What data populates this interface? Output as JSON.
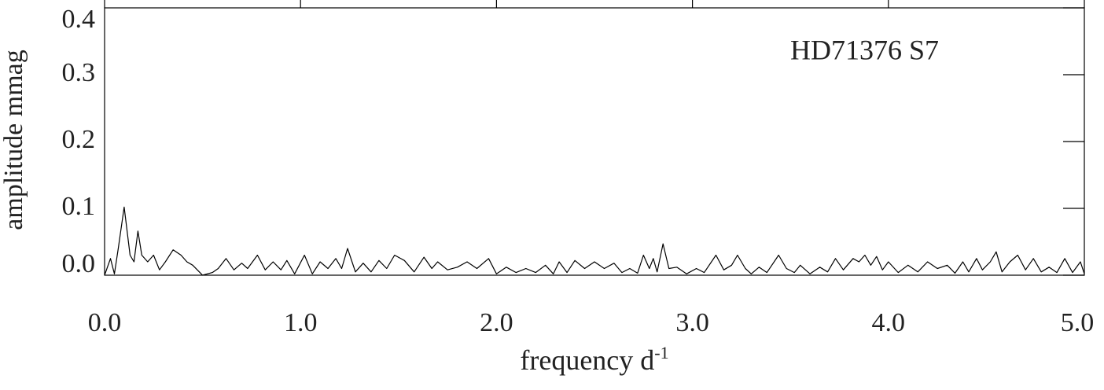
{
  "chart_data": {
    "type": "line",
    "annotation": "HD71376 S7",
    "xlabel": {
      "text": "frequency d",
      "superscript": "-1"
    },
    "ylabel": "amplitude mmag",
    "xlim": [
      0,
      5
    ],
    "ylim": [
      0,
      0.4
    ],
    "xticks": [
      {
        "value": 0,
        "label": "0.0"
      },
      {
        "value": 1,
        "label": "1.0"
      },
      {
        "value": 2,
        "label": "2.0"
      },
      {
        "value": 3,
        "label": "3.0"
      },
      {
        "value": 4,
        "label": "4.0"
      },
      {
        "value": 5,
        "label": "5.0"
      }
    ],
    "yticks": [
      {
        "value": 0,
        "label": "0.0"
      },
      {
        "value": 0.1,
        "label": "0.1"
      },
      {
        "value": 0.2,
        "label": "0.2"
      },
      {
        "value": 0.3,
        "label": "0.3"
      },
      {
        "value": 0.4,
        "label": "0.4"
      }
    ],
    "series": [
      {
        "color": "#000000",
        "x": [
          0.0,
          0.03,
          0.05,
          0.07,
          0.1,
          0.13,
          0.15,
          0.17,
          0.19,
          0.22,
          0.25,
          0.28,
          0.31,
          0.35,
          0.39,
          0.42,
          0.45,
          0.5,
          0.55,
          0.58,
          0.62,
          0.66,
          0.7,
          0.73,
          0.78,
          0.82,
          0.86,
          0.9,
          0.93,
          0.97,
          1.02,
          1.06,
          1.1,
          1.14,
          1.18,
          1.21,
          1.24,
          1.28,
          1.32,
          1.36,
          1.4,
          1.44,
          1.48,
          1.53,
          1.58,
          1.63,
          1.67,
          1.7,
          1.75,
          1.8,
          1.85,
          1.9,
          1.96,
          2.0,
          2.05,
          2.1,
          2.15,
          2.2,
          2.25,
          2.29,
          2.32,
          2.36,
          2.4,
          2.45,
          2.5,
          2.55,
          2.6,
          2.64,
          2.68,
          2.72,
          2.75,
          2.78,
          2.8,
          2.82,
          2.85,
          2.88,
          2.92,
          2.97,
          3.02,
          3.06,
          3.12,
          3.16,
          3.2,
          3.23,
          3.27,
          3.3,
          3.34,
          3.38,
          3.44,
          3.48,
          3.52,
          3.55,
          3.6,
          3.65,
          3.69,
          3.73,
          3.77,
          3.82,
          3.85,
          3.88,
          3.91,
          3.94,
          3.97,
          4.0,
          4.05,
          4.1,
          4.15,
          4.2,
          4.25,
          4.3,
          4.34,
          4.38,
          4.41,
          4.45,
          4.48,
          4.52,
          4.55,
          4.58,
          4.62,
          4.66,
          4.7,
          4.74,
          4.78,
          4.82,
          4.86,
          4.9,
          4.94,
          4.98,
          5.0
        ],
        "values": [
          0.0,
          0.025,
          0.002,
          0.04,
          0.102,
          0.03,
          0.02,
          0.066,
          0.03,
          0.02,
          0.03,
          0.008,
          0.02,
          0.038,
          0.03,
          0.02,
          0.015,
          0.0,
          0.004,
          0.01,
          0.025,
          0.008,
          0.018,
          0.01,
          0.03,
          0.008,
          0.02,
          0.008,
          0.022,
          0.002,
          0.03,
          0.002,
          0.02,
          0.01,
          0.025,
          0.01,
          0.04,
          0.005,
          0.018,
          0.005,
          0.022,
          0.01,
          0.03,
          0.022,
          0.005,
          0.027,
          0.01,
          0.02,
          0.008,
          0.012,
          0.02,
          0.01,
          0.025,
          0.002,
          0.012,
          0.004,
          0.01,
          0.004,
          0.015,
          0.002,
          0.02,
          0.004,
          0.022,
          0.01,
          0.02,
          0.01,
          0.018,
          0.004,
          0.01,
          0.003,
          0.03,
          0.01,
          0.025,
          0.005,
          0.047,
          0.01,
          0.012,
          0.002,
          0.01,
          0.004,
          0.03,
          0.008,
          0.015,
          0.03,
          0.01,
          0.002,
          0.012,
          0.004,
          0.03,
          0.01,
          0.004,
          0.015,
          0.002,
          0.012,
          0.005,
          0.025,
          0.008,
          0.025,
          0.02,
          0.03,
          0.015,
          0.028,
          0.008,
          0.02,
          0.004,
          0.015,
          0.005,
          0.02,
          0.01,
          0.015,
          0.003,
          0.02,
          0.005,
          0.025,
          0.008,
          0.02,
          0.035,
          0.005,
          0.02,
          0.03,
          0.008,
          0.025,
          0.005,
          0.012,
          0.004,
          0.025,
          0.004,
          0.02,
          0.002
        ]
      }
    ]
  }
}
